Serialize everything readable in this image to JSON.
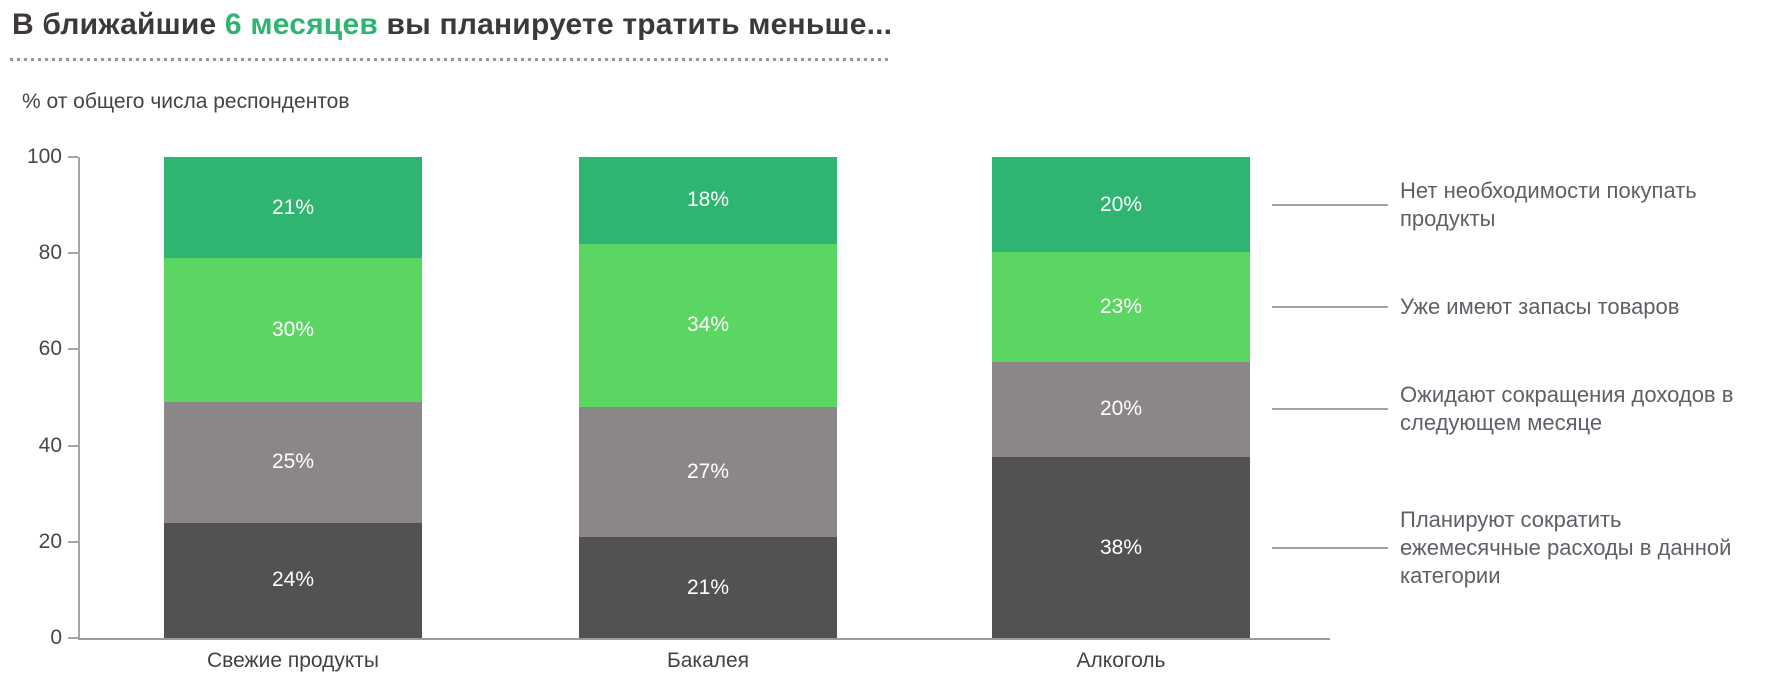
{
  "title": {
    "prefix": "В ближайшие ",
    "highlight": "6 месяцев",
    "suffix": " вы планируете тратить меньше...",
    "accent_color": "#2fb571"
  },
  "chart_data": {
    "type": "bar",
    "stacked": true,
    "title": "В ближайшие 6 месяцев вы планируете тратить меньше...",
    "ylabel": "% от общего числа респондентов",
    "xlabel": "",
    "categories": [
      "Свежие продукты",
      "Бакалея",
      "Алкоголь"
    ],
    "series": [
      {
        "name": "Планируют сократить ежемесячные расходы в данной категории",
        "color": "#545152",
        "values": [
          24,
          21,
          38
        ]
      },
      {
        "name": "Ожидают сокращения доходов в следующем месяце",
        "color": "#8b8687",
        "values": [
          25,
          27,
          20
        ]
      },
      {
        "name": "Уже имеют запасы товаров",
        "color": "#5cd662",
        "values": [
          30,
          34,
          23
        ]
      },
      {
        "name": "Нет необходимости покупать продукты",
        "color": "#2fb571",
        "values": [
          21,
          18,
          20
        ]
      }
    ],
    "value_suffix": "%",
    "ylim": [
      0,
      100
    ],
    "yticks": [
      0,
      20,
      40,
      60,
      80,
      100
    ],
    "grid": false,
    "legend_position": "right"
  }
}
